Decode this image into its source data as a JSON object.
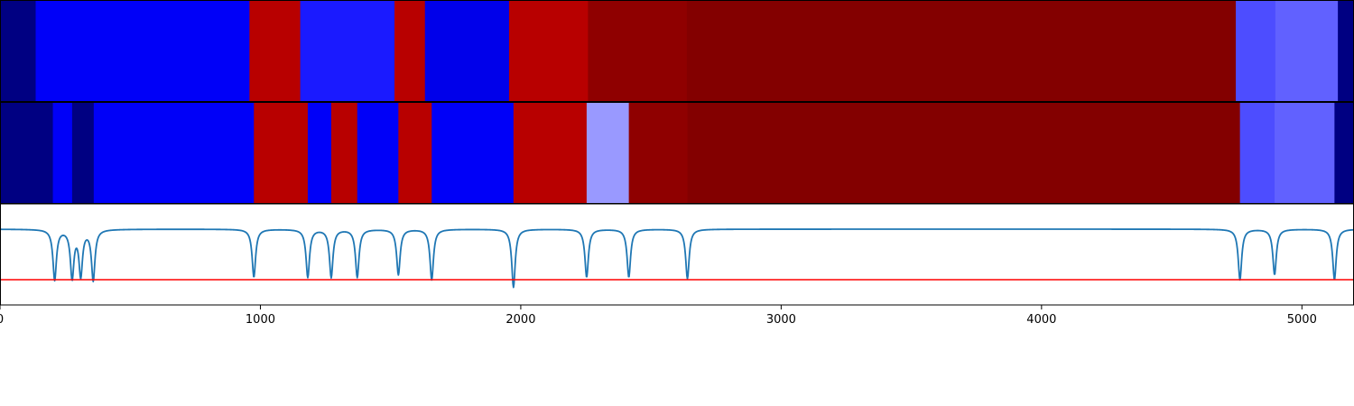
{
  "chart_data": {
    "type": "heatmap",
    "x_range": [
      0,
      5200
    ],
    "x_ticks": [
      {
        "value": 0,
        "label": "0"
      },
      {
        "value": 1000,
        "label": "1000"
      },
      {
        "value": 2000,
        "label": "2000"
      },
      {
        "value": 3000,
        "label": "3000"
      },
      {
        "value": 4000,
        "label": "4000"
      },
      {
        "value": 5000,
        "label": "5000"
      }
    ],
    "colormap": "seismic",
    "color_range": [
      -1,
      1
    ],
    "strips": [
      {
        "segments": [
          {
            "x0": 0,
            "x1": 137,
            "value": -0.85
          },
          {
            "x0": 137,
            "x1": 958,
            "value": -0.52
          },
          {
            "x0": 958,
            "x1": 1153,
            "value": 0.78
          },
          {
            "x0": 1153,
            "x1": 1515,
            "value": -0.45
          },
          {
            "x0": 1515,
            "x1": 1632,
            "value": 0.78
          },
          {
            "x0": 1632,
            "x1": 1955,
            "value": -0.56
          },
          {
            "x0": 1955,
            "x1": 2258,
            "value": 0.78
          },
          {
            "x0": 2258,
            "x1": 2638,
            "value": 0.94
          },
          {
            "x0": 2638,
            "x1": 4746,
            "value": 0.99
          },
          {
            "x0": 4746,
            "x1": 4898,
            "value": -0.35
          },
          {
            "x0": 4898,
            "x1": 5138,
            "value": -0.31
          },
          {
            "x0": 5138,
            "x1": 5200,
            "value": -0.85
          }
        ]
      },
      {
        "segments": [
          {
            "x0": 0,
            "x1": 203,
            "value": -0.85
          },
          {
            "x0": 203,
            "x1": 277,
            "value": -0.52
          },
          {
            "x0": 277,
            "x1": 360,
            "value": -0.85
          },
          {
            "x0": 360,
            "x1": 975,
            "value": -0.52
          },
          {
            "x0": 975,
            "x1": 1182,
            "value": 0.78
          },
          {
            "x0": 1182,
            "x1": 1272,
            "value": -0.52
          },
          {
            "x0": 1272,
            "x1": 1372,
            "value": 0.78
          },
          {
            "x0": 1372,
            "x1": 1530,
            "value": -0.52
          },
          {
            "x0": 1530,
            "x1": 1658,
            "value": 0.78
          },
          {
            "x0": 1658,
            "x1": 1972,
            "value": -0.52
          },
          {
            "x0": 1972,
            "x1": 2253,
            "value": 0.78
          },
          {
            "x0": 2253,
            "x1": 2415,
            "value": -0.2
          },
          {
            "x0": 2415,
            "x1": 2640,
            "value": 0.94
          },
          {
            "x0": 2640,
            "x1": 4762,
            "value": 0.99
          },
          {
            "x0": 4762,
            "x1": 4895,
            "value": -0.35
          },
          {
            "x0": 4895,
            "x1": 5125,
            "value": -0.31
          },
          {
            "x0": 5125,
            "x1": 5200,
            "value": -0.85
          }
        ]
      }
    ],
    "signal": {
      "color": "#1f77b4",
      "y_range": [
        -3,
        1
      ],
      "baseline": 0,
      "dips": [
        {
          "x": 210,
          "depth": 1.0
        },
        {
          "x": 277,
          "depth": 0.95
        },
        {
          "x": 310,
          "depth": 0.9
        },
        {
          "x": 358,
          "depth": 1.0
        },
        {
          "x": 975,
          "depth": 0.95
        },
        {
          "x": 1182,
          "depth": 0.95
        },
        {
          "x": 1272,
          "depth": 0.95
        },
        {
          "x": 1372,
          "depth": 0.95
        },
        {
          "x": 1530,
          "depth": 0.9
        },
        {
          "x": 1658,
          "depth": 1.0
        },
        {
          "x": 1972,
          "depth": 1.15
        },
        {
          "x": 2253,
          "depth": 0.95
        },
        {
          "x": 2415,
          "depth": 0.95
        },
        {
          "x": 2640,
          "depth": 0.98
        },
        {
          "x": 4762,
          "depth": 1.0
        },
        {
          "x": 4895,
          "depth": 0.9
        },
        {
          "x": 5125,
          "depth": 1.0
        }
      ]
    },
    "threshold": {
      "value": -2,
      "color": "#ff0000"
    }
  }
}
